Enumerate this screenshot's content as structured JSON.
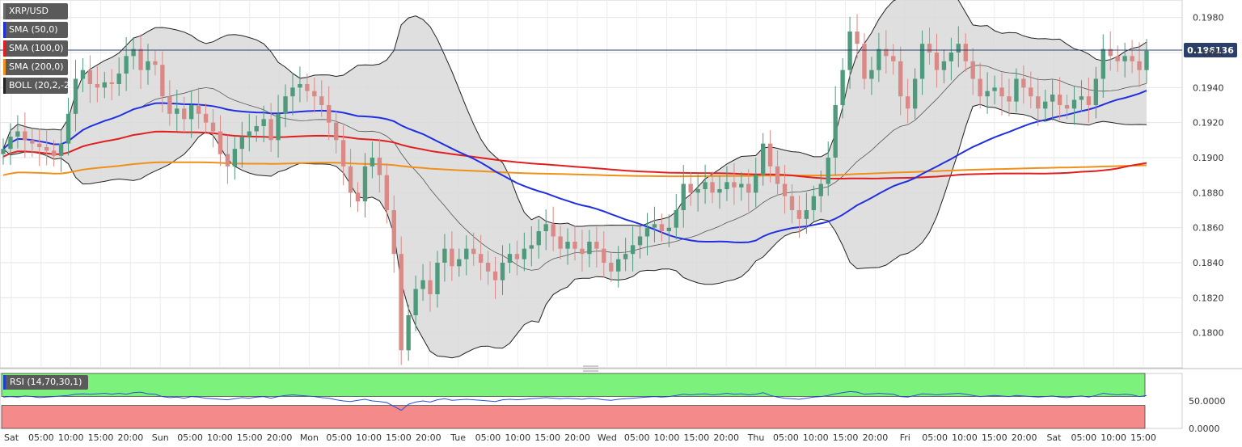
{
  "legend": [
    {
      "label": "XRP/USD",
      "color": "#6b6b6b"
    },
    {
      "label": "SMA (50,0)",
      "color": "#2030e0"
    },
    {
      "label": "SMA (100,0)",
      "color": "#e02020"
    },
    {
      "label": "SMA (200,0)",
      "color": "#f0901a"
    },
    {
      "label": "BOLL (20,2,-2)",
      "color": "#333333"
    }
  ],
  "rsi_label": "RSI (14,70,30,1)",
  "current_price_label": "0.196136",
  "chart_data": [
    {
      "type": "candlestick",
      "title": "",
      "pair": "XRP/USD",
      "ylim": [
        0.178,
        0.199
      ],
      "y_ticks": [
        "0.1800",
        "0.1820",
        "0.1840",
        "0.1860",
        "0.1880",
        "0.1900",
        "0.1920",
        "0.1940",
        "0.1960",
        "0.1980"
      ],
      "x_tick_labels": [
        "Sat",
        "05:00",
        "10:00",
        "15:00",
        "20:00",
        "Sun",
        "05:00",
        "10:00",
        "15:00",
        "20:00",
        "Mon",
        "05:00",
        "10:00",
        "15:00",
        "20:00",
        "Tue",
        "05:00",
        "10:00",
        "15:00",
        "20:00",
        "Wed",
        "05:00",
        "10:00",
        "15:00",
        "20:00",
        "Thu",
        "05:00",
        "10:00",
        "15:00",
        "20:00",
        "Fri",
        "05:00",
        "10:00",
        "15:00",
        "20:00",
        "Sat",
        "05:00",
        "10:00",
        "15:00"
      ],
      "current_price": 0.196136,
      "close": [
        0.1905,
        0.1912,
        0.1915,
        0.191,
        0.1908,
        0.1906,
        0.1904,
        0.1901,
        0.1908,
        0.1925,
        0.1945,
        0.195,
        0.1942,
        0.194,
        0.1943,
        0.1942,
        0.1948,
        0.1958,
        0.1962,
        0.195,
        0.1955,
        0.1953,
        0.1935,
        0.1925,
        0.1928,
        0.1922,
        0.193,
        0.1925,
        0.192,
        0.1915,
        0.1902,
        0.1895,
        0.1905,
        0.1912,
        0.1915,
        0.1918,
        0.1922,
        0.191,
        0.1925,
        0.1935,
        0.194,
        0.1942,
        0.1938,
        0.1935,
        0.193,
        0.192,
        0.191,
        0.1895,
        0.188,
        0.1875,
        0.1895,
        0.19,
        0.189,
        0.187,
        0.1845,
        0.179,
        0.181,
        0.1825,
        0.183,
        0.1822,
        0.184,
        0.1848,
        0.1838,
        0.1842,
        0.1848,
        0.1845,
        0.184,
        0.1835,
        0.183,
        0.184,
        0.1845,
        0.1842,
        0.1848,
        0.185,
        0.1858,
        0.1862,
        0.1855,
        0.1848,
        0.1852,
        0.1848,
        0.1845,
        0.1852,
        0.1848,
        0.184,
        0.1835,
        0.1842,
        0.1845,
        0.185,
        0.1855,
        0.186,
        0.1862,
        0.1858,
        0.186,
        0.187,
        0.1885,
        0.188,
        0.1882,
        0.1886,
        0.188,
        0.1882,
        0.1886,
        0.1883,
        0.1885,
        0.188,
        0.189,
        0.1908,
        0.1895,
        0.1885,
        0.1878,
        0.187,
        0.1865,
        0.187,
        0.1878,
        0.1885,
        0.19,
        0.193,
        0.195,
        0.1972,
        0.1965,
        0.1945,
        0.195,
        0.1962,
        0.1958,
        0.1955,
        0.1935,
        0.1928,
        0.1945,
        0.1965,
        0.196,
        0.195,
        0.1955,
        0.196,
        0.1965,
        0.1955,
        0.1945,
        0.1935,
        0.1938,
        0.194,
        0.1935,
        0.1932,
        0.1945,
        0.194,
        0.1935,
        0.1928,
        0.1932,
        0.1936,
        0.193,
        0.1928,
        0.1933,
        0.1935,
        0.193,
        0.1945,
        0.1962,
        0.1958,
        0.1955,
        0.1958,
        0.1955,
        0.195,
        0.1961
      ]
    },
    {
      "type": "line",
      "title": "",
      "indicator": "RSI (14,70,30,1)",
      "ylim": [
        0,
        100
      ],
      "y_ticks": [
        "0.0000",
        "50.0000"
      ],
      "levels": {
        "overbought": 70,
        "oversold": 30
      },
      "values": [
        57,
        58,
        57,
        59,
        58,
        56,
        57,
        58,
        59,
        60,
        62,
        63,
        62,
        63,
        64,
        62,
        64,
        62,
        65,
        66,
        63,
        62,
        58,
        56,
        57,
        55,
        58,
        57,
        55,
        54,
        53,
        52,
        54,
        56,
        55,
        57,
        58,
        55,
        58,
        60,
        61,
        60,
        59,
        58,
        56,
        55,
        52,
        50,
        49,
        51,
        53,
        50,
        49,
        47,
        40,
        33,
        44,
        48,
        50,
        48,
        52,
        54,
        51,
        52,
        53,
        52,
        51,
        50,
        49,
        52,
        53,
        52,
        53,
        54,
        55,
        56,
        55,
        54,
        55,
        54,
        53,
        55,
        54,
        52,
        51,
        53,
        54,
        55,
        56,
        57,
        58,
        57,
        58,
        60,
        62,
        61,
        62,
        63,
        61,
        62,
        64,
        62,
        63,
        61,
        62,
        65,
        60,
        57,
        55,
        54,
        53,
        55,
        57,
        58,
        60,
        63,
        65,
        67,
        66,
        62,
        63,
        64,
        63,
        62,
        58,
        57,
        60,
        63,
        62,
        61,
        62,
        63,
        64,
        62,
        60,
        58,
        59,
        60,
        59,
        58,
        60,
        59,
        58,
        57,
        58,
        59,
        57,
        56,
        58,
        59,
        57,
        60,
        64,
        62,
        61,
        62,
        61,
        58,
        60
      ]
    }
  ]
}
